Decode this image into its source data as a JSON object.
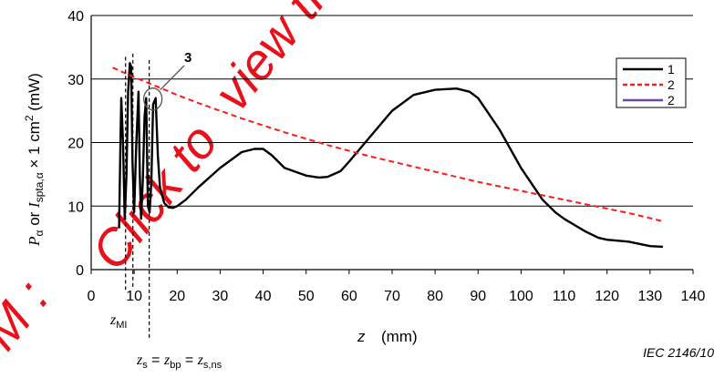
{
  "watermark": {
    "fragments": [
      "M :",
      "Click to",
      "view the ful"
    ],
    "color": "#e8101a"
  },
  "chart_data": {
    "type": "line",
    "xlabel": "z",
    "xlabel_unit": "(mm)",
    "ylabel_parts": [
      "P",
      "α",
      " or ",
      "I",
      "spta,α",
      " × 1 cm",
      "2",
      "  (mW)"
    ],
    "xlim": [
      0,
      140
    ],
    "ylim": [
      0,
      40
    ],
    "xticks": [
      "0",
      "10",
      "20",
      "30",
      "40",
      "50",
      "60",
      "70",
      "80",
      "90",
      "100",
      "110",
      "120",
      "130",
      "140"
    ],
    "yticks": [
      "0",
      "10",
      "20",
      "30",
      "40"
    ],
    "grid": "horizontal",
    "legend_position": "top-right",
    "series": [
      {
        "name": "1",
        "style": "solid",
        "color": "#000000",
        "x": [
          6.5,
          6.8,
          7.0,
          7.4,
          7.8,
          8.2,
          8.6,
          9.0,
          9.3,
          9.6,
          10.0,
          10.5,
          11.0,
          11.3,
          11.6,
          12.0,
          12.4,
          12.8,
          13.2,
          13.6,
          14.0,
          14.4,
          15.0,
          15.5,
          16.0,
          17.0,
          18.0,
          19.0,
          20.0,
          22.0,
          25.0,
          30.0,
          35.0,
          38.0,
          40.0,
          42.0,
          45.0,
          50.0,
          53.0,
          55.0,
          58.0,
          60.0,
          65.0,
          70.0,
          75.0,
          80.0,
          85.0,
          88.0,
          90.0,
          95.0,
          100.0,
          105.0,
          108.0,
          110.0,
          113.0,
          115.0,
          118.0,
          120.0,
          125.0,
          130.0,
          133.0
        ],
        "y": [
          6.5,
          20,
          27,
          20,
          8,
          15,
          28,
          32.5,
          32,
          17,
          9,
          20,
          28,
          15,
          8,
          14,
          24,
          27,
          10,
          9,
          14,
          26,
          27,
          18,
          13,
          10.5,
          9.8,
          9.7,
          10.0,
          11.0,
          13.0,
          16.0,
          18.5,
          19.0,
          19.0,
          18.0,
          16.0,
          14.8,
          14.5,
          14.6,
          15.5,
          17.0,
          21.0,
          25.0,
          27.5,
          28.3,
          28.5,
          28.0,
          27.0,
          22.0,
          16.0,
          11.0,
          9.0,
          8.0,
          6.8,
          6.0,
          5.0,
          4.7,
          4.4,
          3.7,
          3.6
        ]
      },
      {
        "name": "2",
        "style": "dashed",
        "color": "#ff1a1a",
        "x": [
          5,
          10,
          15,
          20,
          25,
          30,
          35,
          40,
          45,
          50,
          55,
          60,
          65,
          70,
          75,
          80,
          85,
          90,
          95,
          100,
          105,
          110,
          115,
          120,
          125,
          130,
          133
        ],
        "y": [
          31.8,
          30.3,
          28.9,
          27.5,
          26.2,
          25.0,
          23.8,
          22.7,
          21.6,
          20.6,
          19.6,
          18.7,
          17.8,
          17.0,
          16.2,
          15.4,
          14.6,
          13.8,
          13.1,
          12.4,
          11.7,
          11.0,
          10.3,
          9.6,
          8.9,
          8.1,
          7.6
        ]
      },
      {
        "name": "2",
        "style": "solid",
        "color": "#6a48a8",
        "x": [],
        "y": []
      }
    ],
    "annotations": {
      "circle_label": "3",
      "circle_at": {
        "x": 13.5,
        "y": 27
      },
      "vlines": [
        {
          "x": 8.0,
          "y_from": 33.5,
          "label_parts": [
            "z",
            "MI"
          ]
        },
        {
          "x": 9.7,
          "y_from": 34.0,
          "label_parts": []
        },
        {
          "x": 13.5,
          "y_from": 33.0,
          "label_parts": [
            "z",
            "s",
            " = ",
            "z",
            "bp",
            " = ",
            "z",
            "s,ns"
          ]
        }
      ]
    }
  },
  "figure_id": "IEC   2146/10"
}
